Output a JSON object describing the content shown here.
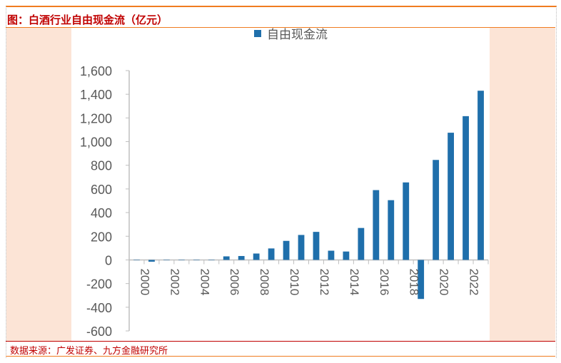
{
  "title": "图：白酒行业自由现金流（亿元）",
  "source": "数据来源：广发证券、九方金融研究所",
  "colors": {
    "bar": "#1f6fab",
    "accent": "#f07c20",
    "title": "#c00000"
  },
  "chart_data": {
    "type": "bar",
    "title": "",
    "legend": {
      "label": "自由现金流",
      "placement": "top"
    },
    "categories": [
      "2000",
      "2001",
      "2002",
      "2003",
      "2004",
      "2005",
      "2006",
      "2007",
      "2008",
      "2009",
      "2010",
      "2011",
      "2012",
      "2013",
      "2014",
      "2015",
      "2016",
      "2017",
      "2018",
      "2019",
      "2020",
      "2021",
      "2022",
      "2023"
    ],
    "x_tick_labels": [
      "2000",
      "2002",
      "2004",
      "2006",
      "2008",
      "2010",
      "2012",
      "2014",
      "2016",
      "2018",
      "2020",
      "2022"
    ],
    "series": [
      {
        "name": "自由现金流",
        "values": [
          0,
          -15,
          0,
          0,
          2,
          0,
          30,
          33,
          54,
          97,
          161,
          211,
          237,
          78,
          71,
          270,
          590,
          505,
          655,
          -330,
          845,
          1075,
          1215,
          1430
        ]
      }
    ],
    "ylim": [
      -600,
      1600
    ],
    "y_ticks": [
      -600,
      -400,
      -200,
      0,
      200,
      400,
      600,
      800,
      1000,
      1200,
      1400,
      1600
    ],
    "y_tick_labels": [
      "-600",
      "-400",
      "-200",
      "0",
      "200",
      "400",
      "600",
      "800",
      "1,000",
      "1,200",
      "1,400",
      "1,600"
    ],
    "xlabel": "",
    "ylabel": "",
    "grid": false
  }
}
